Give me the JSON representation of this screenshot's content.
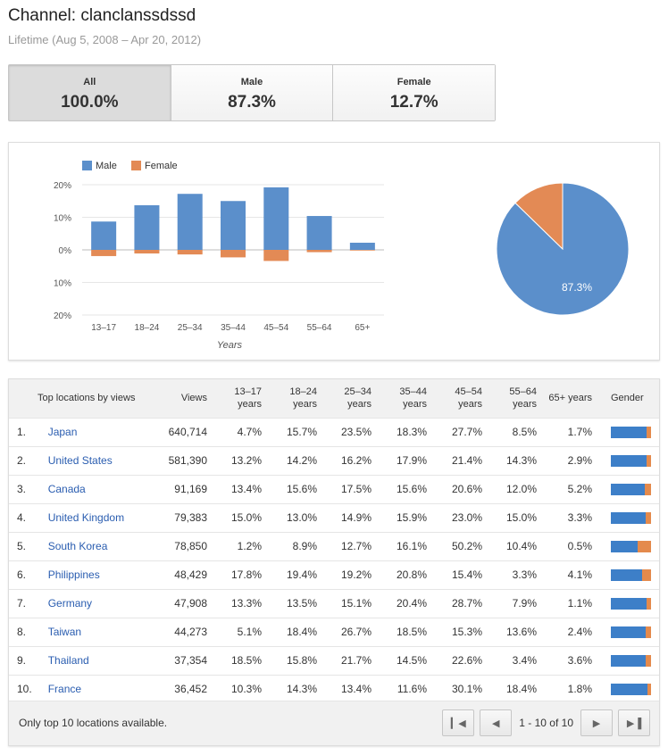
{
  "header": {
    "title": "Channel: clanclanssdssd",
    "subtitle": "Lifetime (Aug 5, 2008 – Apr 20, 2012)"
  },
  "gender_tabs": [
    {
      "label": "All",
      "value": "100.0%",
      "active": true
    },
    {
      "label": "Male",
      "value": "87.3%",
      "active": false
    },
    {
      "label": "Female",
      "value": "12.7%",
      "active": false
    }
  ],
  "colors": {
    "male": "#5b8fcb",
    "female": "#e38a55",
    "bar_male": "#3d7fc8",
    "bar_female": "#e48a4c"
  },
  "chart_data": [
    {
      "type": "bar",
      "categories": [
        "13–17",
        "18–24",
        "25–34",
        "35–44",
        "45–54",
        "55–64",
        "65+"
      ],
      "series": [
        {
          "name": "Male",
          "values": [
            8.7,
            13.7,
            17.2,
            15.0,
            19.2,
            10.4,
            2.2
          ]
        },
        {
          "name": "Female",
          "values": [
            1.9,
            1.1,
            1.4,
            2.3,
            3.4,
            0.7,
            0.2
          ]
        }
      ],
      "title": "",
      "xlabel": "Years",
      "ylabel": "",
      "ylim": [
        -20,
        20
      ],
      "yticks": [
        "20%",
        "10%",
        "0%",
        "10%",
        "20%"
      ],
      "grid": true,
      "legend": "top-left",
      "note": "Female values plotted below the zero line"
    },
    {
      "type": "pie",
      "slices": [
        {
          "label": "Male",
          "value": 87.3
        },
        {
          "label": "Female",
          "value": 12.7
        }
      ],
      "data_label": "87.3%"
    }
  ],
  "table": {
    "headers": [
      "Top locations by views",
      "Views",
      "13–17 years",
      "18–24 years",
      "25–34 years",
      "35–44 years",
      "45–54 years",
      "55–64 years",
      "65+ years",
      "Gender"
    ],
    "rows": [
      {
        "rank": "1.",
        "location": "Japan",
        "views": "640,714",
        "ages": [
          "4.7%",
          "15.7%",
          "23.5%",
          "18.3%",
          "27.7%",
          "8.5%",
          "1.7%"
        ],
        "male_pct": 88
      },
      {
        "rank": "2.",
        "location": "United States",
        "views": "581,390",
        "ages": [
          "13.2%",
          "14.2%",
          "16.2%",
          "17.9%",
          "21.4%",
          "14.3%",
          "2.9%"
        ],
        "male_pct": 88
      },
      {
        "rank": "3.",
        "location": "Canada",
        "views": "91,169",
        "ages": [
          "13.4%",
          "15.6%",
          "17.5%",
          "15.6%",
          "20.6%",
          "12.0%",
          "5.2%"
        ],
        "male_pct": 84
      },
      {
        "rank": "4.",
        "location": "United Kingdom",
        "views": "79,383",
        "ages": [
          "15.0%",
          "13.0%",
          "14.9%",
          "15.9%",
          "23.0%",
          "15.0%",
          "3.3%"
        ],
        "male_pct": 86
      },
      {
        "rank": "5.",
        "location": "South Korea",
        "views": "78,850",
        "ages": [
          "1.2%",
          "8.9%",
          "12.7%",
          "16.1%",
          "50.2%",
          "10.4%",
          "0.5%"
        ],
        "male_pct": 66
      },
      {
        "rank": "6.",
        "location": "Philippines",
        "views": "48,429",
        "ages": [
          "17.8%",
          "19.4%",
          "19.2%",
          "20.8%",
          "15.4%",
          "3.3%",
          "4.1%"
        ],
        "male_pct": 78
      },
      {
        "rank": "7.",
        "location": "Germany",
        "views": "47,908",
        "ages": [
          "13.3%",
          "13.5%",
          "15.1%",
          "20.4%",
          "28.7%",
          "7.9%",
          "1.1%"
        ],
        "male_pct": 89
      },
      {
        "rank": "8.",
        "location": "Taiwan",
        "views": "44,273",
        "ages": [
          "5.1%",
          "18.4%",
          "26.7%",
          "18.5%",
          "15.3%",
          "13.6%",
          "2.4%"
        ],
        "male_pct": 86
      },
      {
        "rank": "9.",
        "location": "Thailand",
        "views": "37,354",
        "ages": [
          "18.5%",
          "15.8%",
          "21.7%",
          "14.5%",
          "22.6%",
          "3.4%",
          "3.6%"
        ],
        "male_pct": 86
      },
      {
        "rank": "10.",
        "location": "France",
        "views": "36,452",
        "ages": [
          "10.3%",
          "14.3%",
          "13.4%",
          "11.6%",
          "30.1%",
          "18.4%",
          "1.8%"
        ],
        "male_pct": 90
      }
    ],
    "footer_note": "Only top 10 locations available.",
    "pager": {
      "range": "1 - 10 of 10"
    }
  }
}
